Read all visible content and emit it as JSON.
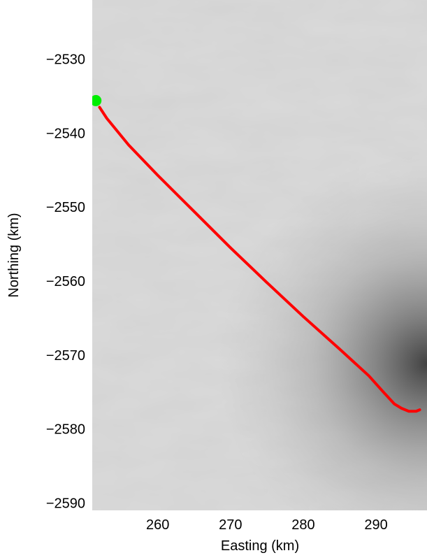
{
  "chart_data": {
    "type": "line",
    "title": "",
    "xlabel": "Easting (km)",
    "ylabel": "Northing (km)",
    "xlim": [
      251,
      297
    ],
    "ylim": [
      -2591,
      -2522
    ],
    "x_ticks": [
      260,
      270,
      280,
      290
    ],
    "y_ticks": [
      -2530,
      -2540,
      -2550,
      -2560,
      -2570,
      -2580,
      -2590
    ],
    "x_tick_labels": [
      "260",
      "270",
      "280",
      "290"
    ],
    "y_tick_labels": [
      "−2530",
      "−2540",
      "−2550",
      "−2560",
      "−2570",
      "−2580",
      "−2590"
    ],
    "grid": false,
    "background": "grayscale satellite imagery",
    "series": [
      {
        "color": "#ff0000",
        "x": [
          252.0,
          253.0,
          256.0,
          260.0,
          265.0,
          270.0,
          275.0,
          280.0,
          285.0,
          289.0,
          291.0,
          292.5,
          293.5,
          294.5,
          295.5,
          296.0
        ],
        "y": [
          -2536.5,
          -2538.0,
          -2541.6,
          -2545.7,
          -2550.6,
          -2555.5,
          -2560.2,
          -2564.8,
          -2569.2,
          -2572.8,
          -2575.0,
          -2576.6,
          -2577.2,
          -2577.6,
          -2577.6,
          -2577.4
        ]
      }
    ],
    "markers": [
      {
        "color": "#00ee00",
        "x": 251.5,
        "y": -2535.6
      }
    ]
  }
}
